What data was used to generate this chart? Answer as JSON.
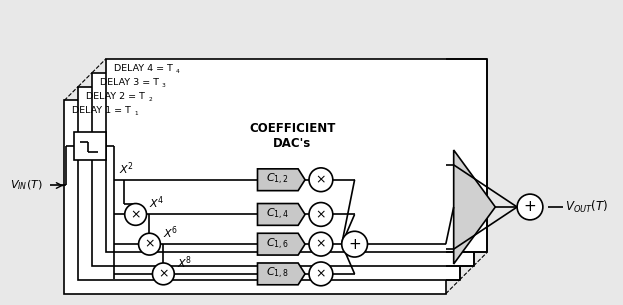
{
  "bg_color": "#e8e8e8",
  "box_color": "#ffffff",
  "line_color": "#000000",
  "gray_color": "#c8c8c8",
  "delay_labels": [
    "DELAY 1 = T",
    "DELAY 2 = T",
    "DELAY 3 = T",
    "DELAY 4 = T"
  ],
  "delay_subs": [
    "1",
    "2",
    "3",
    "4"
  ],
  "coeff_row_labels": [
    "C_{1,2}",
    "C_{1,4}",
    "C_{1,6}",
    "C_{1,8}"
  ],
  "power_row_labels": [
    "X^2",
    "X^4",
    "X^6",
    "X^8"
  ],
  "vin_label": "V_{IN}(T)",
  "vout_label": "V_{OUT}(T)",
  "coeff_title_line1": "COEFFICIENT",
  "coeff_title_line2": "DAC's"
}
